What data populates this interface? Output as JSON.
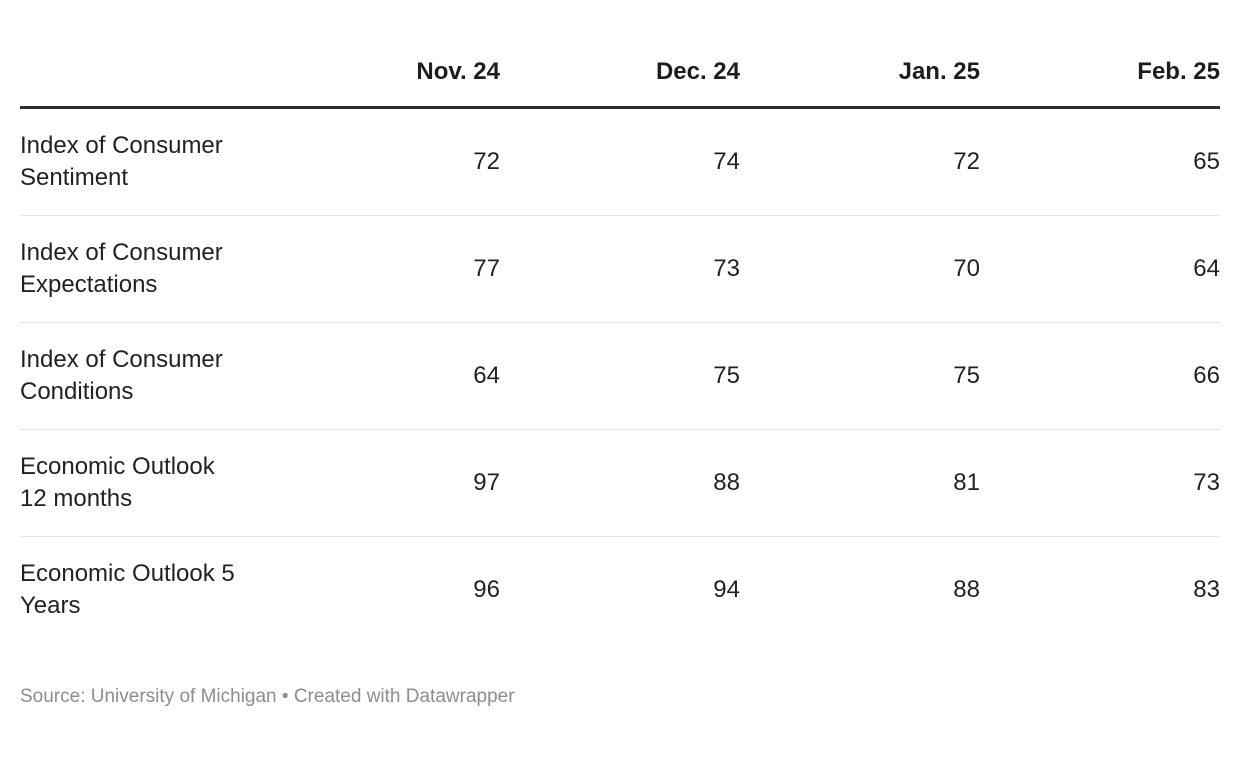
{
  "chart_data": {
    "type": "table",
    "columns": [
      "Nov. 24",
      "Dec. 24",
      "Jan. 25",
      "Feb. 25"
    ],
    "rows": [
      {
        "label": "Index of Consumer Sentiment",
        "values": [
          72,
          74,
          72,
          65
        ]
      },
      {
        "label": "Index of Consumer Expectations",
        "values": [
          77,
          73,
          70,
          64
        ]
      },
      {
        "label": "Index of Consumer Conditions",
        "values": [
          64,
          75,
          75,
          66
        ]
      },
      {
        "label": "Economic Outlook 12 months",
        "values": [
          97,
          88,
          81,
          73
        ]
      },
      {
        "label": "Economic Outlook 5 Years",
        "values": [
          96,
          94,
          88,
          83
        ]
      }
    ],
    "source": "University of Michigan",
    "layout_hints": {
      "header_rule": "thick dark line under header",
      "row_rules": "thin light gray between rows",
      "value_alignment": "right"
    }
  },
  "footer": {
    "source_label": "Source: ",
    "source_name": "University of Michigan",
    "separator": " • ",
    "attribution": "Created with Datawrapper"
  },
  "colors": {
    "text": "#1d1d1d",
    "header_rule": "#2e2e2e",
    "row_rule": "#e8e8e8",
    "footer_text": "#8d8d8d",
    "background": "#ffffff"
  }
}
